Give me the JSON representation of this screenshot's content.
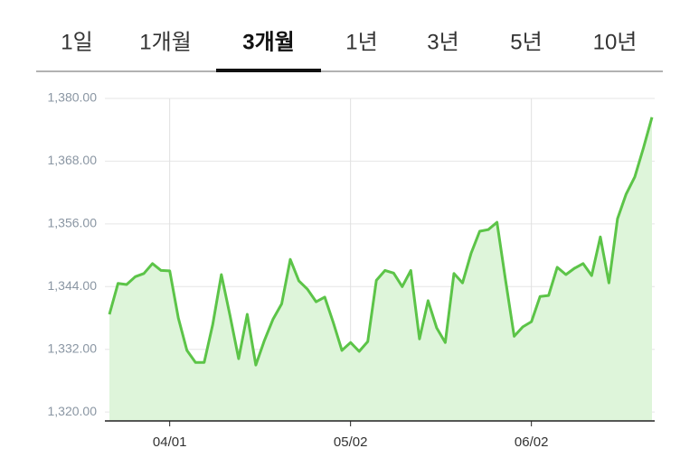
{
  "tabs": {
    "items": [
      "1일",
      "1개월",
      "3개월",
      "1년",
      "3년",
      "5년",
      "10년"
    ],
    "selected": 2
  },
  "chart_data": {
    "type": "area",
    "categories": [
      null,
      null,
      null,
      null,
      null,
      null,
      null,
      "04/01",
      null,
      null,
      null,
      null,
      null,
      null,
      null,
      null,
      null,
      null,
      null,
      null,
      null,
      null,
      null,
      null,
      null,
      null,
      null,
      null,
      "05/02",
      null,
      null,
      null,
      null,
      null,
      null,
      null,
      null,
      null,
      null,
      null,
      null,
      null,
      null,
      null,
      null,
      null,
      null,
      null,
      null,
      "06/02",
      null,
      null,
      null,
      null,
      null,
      null,
      null,
      null,
      null,
      null,
      null,
      null,
      null,
      null
    ],
    "series": [
      {
        "color": "#5cc448",
        "fill": "#def5da",
        "values": [
          1338.7,
          1344.6,
          1344.4,
          1345.9,
          1346.5,
          1348.4,
          1347.1,
          1347.0,
          1338.0,
          1331.8,
          1329.5,
          1329.5,
          1336.8,
          1346.3,
          1338.5,
          1330.2,
          1338.7,
          1329.0,
          1333.7,
          1337.8,
          1340.7,
          1349.2,
          1345.1,
          1343.5,
          1341.1,
          1342.0,
          1337.1,
          1331.8,
          1333.3,
          1331.6,
          1333.5,
          1345.2,
          1347.1,
          1346.6,
          1344.0,
          1347.1,
          1334.0,
          1341.3,
          1336.1,
          1333.3,
          1346.5,
          1344.7,
          1350.4,
          1354.6,
          1354.9,
          1356.3,
          1345.2,
          1334.5,
          1336.3,
          1337.3,
          1342.1,
          1342.3,
          1347.7,
          1346.3,
          1347.5,
          1348.4,
          1346.1,
          1353.5,
          1344.7,
          1357.0,
          1361.7,
          1365.0,
          1370.5,
          1376.4
        ]
      }
    ],
    "ylim": [
      1318.3,
      1380
    ],
    "yticks": [
      {
        "value": 1320,
        "label": "1,320.00"
      },
      {
        "value": 1332,
        "label": "1,332.00"
      },
      {
        "value": 1344,
        "label": "1,344.00"
      },
      {
        "value": 1356,
        "label": "1,356.00"
      },
      {
        "value": 1368,
        "label": "1,368.00"
      },
      {
        "value": 1380,
        "label": "1,380.00"
      }
    ],
    "grid": true
  }
}
